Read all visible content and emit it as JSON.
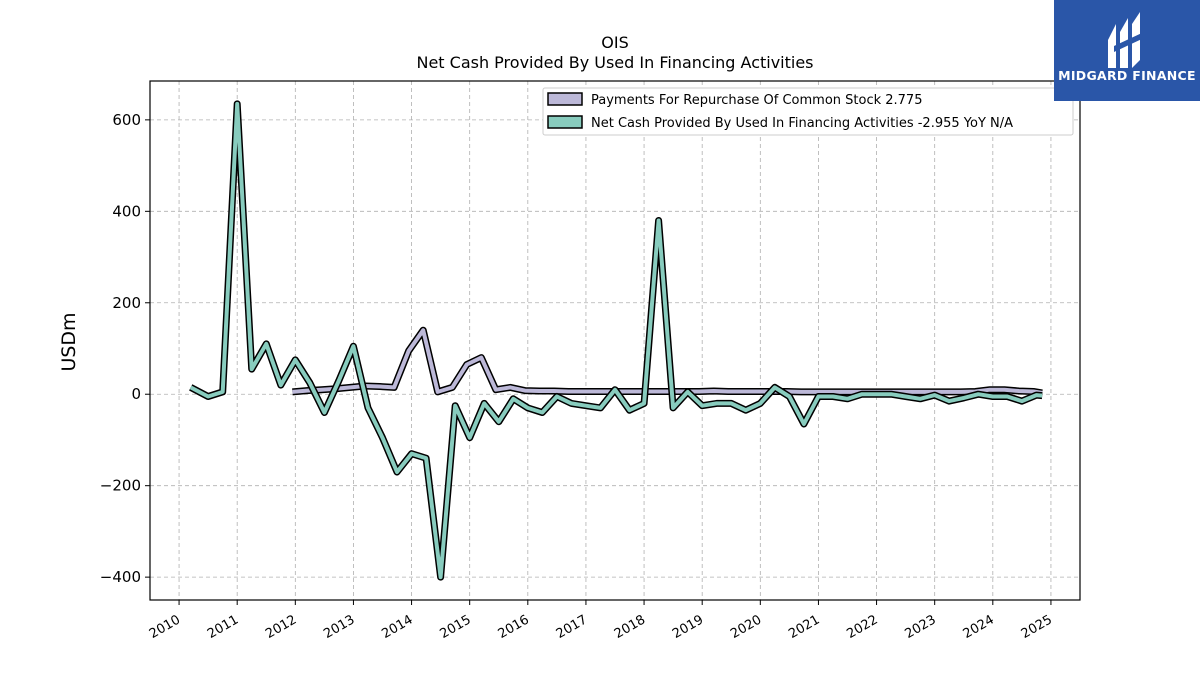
{
  "chart_data": {
    "type": "line",
    "title": "OIS",
    "subtitle": "Net Cash Provided By Used In Financing Activities",
    "ylabel": "USDm",
    "xlabel": "",
    "xlim": [
      2009.5,
      2025.5
    ],
    "ylim": [
      -450,
      685
    ],
    "yticks": [
      -400,
      -200,
      0,
      200,
      400,
      600
    ],
    "ytick_labels": [
      "−400",
      "−200",
      "0",
      "200",
      "400",
      "600"
    ],
    "xticks": [
      2010,
      2011,
      2012,
      2013,
      2014,
      2015,
      2016,
      2017,
      2018,
      2019,
      2020,
      2021,
      2022,
      2023,
      2024,
      2025
    ],
    "xtick_labels": [
      "2010",
      "2011",
      "2012",
      "2013",
      "2014",
      "2015",
      "2016",
      "2017",
      "2018",
      "2019",
      "2020",
      "2021",
      "2022",
      "2023",
      "2024",
      "2025"
    ],
    "grid": true,
    "legend_position": "top-right",
    "series": [
      {
        "name": "Payments For Repurchase Of Common Stock",
        "legend_label": "Payments For Repurchase Of Common Stock  2.775",
        "color": "#bcb8d8",
        "x": [
          2011.95,
          2012.2,
          2012.45,
          2012.7,
          2012.95,
          2013.2,
          2013.45,
          2013.7,
          2013.95,
          2014.2,
          2014.45,
          2014.7,
          2014.95,
          2015.2,
          2015.45,
          2015.7,
          2015.95,
          2016.2,
          2016.45,
          2016.7,
          2016.95,
          2017.2,
          2017.45,
          2017.7,
          2017.95,
          2018.2,
          2018.45,
          2018.7,
          2018.95,
          2019.2,
          2019.45,
          2019.7,
          2019.95,
          2020.2,
          2020.45,
          2020.7,
          2020.95,
          2021.2,
          2021.45,
          2021.7,
          2021.95,
          2022.2,
          2022.45,
          2022.7,
          2022.95,
          2023.2,
          2023.45,
          2023.7,
          2023.95,
          2024.2,
          2024.45,
          2024.7,
          2024.85
        ],
        "values": [
          5,
          8,
          10,
          12,
          15,
          18,
          17,
          15,
          95,
          140,
          5,
          15,
          65,
          80,
          10,
          15,
          8,
          7,
          7,
          6,
          6,
          6,
          6,
          6,
          6,
          6,
          6,
          6,
          6,
          7,
          6,
          6,
          6,
          6,
          6,
          5,
          5,
          5,
          5,
          5,
          5,
          5,
          5,
          5,
          5,
          5,
          5,
          6,
          10,
          10,
          7,
          6,
          3
        ]
      },
      {
        "name": "Net Cash Provided By Used In Financing Activities",
        "legend_label": "Net Cash Provided By Used In Financing Activities  -2.955 YoY N/A",
        "color": "#88ccbe",
        "x": [
          2010.2,
          2010.5,
          2010.75,
          2011.0,
          2011.25,
          2011.5,
          2011.75,
          2012.0,
          2012.25,
          2012.5,
          2012.75,
          2013.0,
          2013.25,
          2013.5,
          2013.75,
          2014.0,
          2014.25,
          2014.5,
          2014.75,
          2015.0,
          2015.25,
          2015.5,
          2015.75,
          2016.0,
          2016.25,
          2016.5,
          2016.75,
          2017.0,
          2017.25,
          2017.5,
          2017.75,
          2018.0,
          2018.25,
          2018.5,
          2018.75,
          2019.0,
          2019.25,
          2019.5,
          2019.75,
          2020.0,
          2020.25,
          2020.5,
          2020.75,
          2021.0,
          2021.25,
          2021.5,
          2021.75,
          2022.0,
          2022.25,
          2022.5,
          2022.75,
          2023.0,
          2023.25,
          2023.5,
          2023.75,
          2024.0,
          2024.25,
          2024.5,
          2024.75,
          2024.85
        ],
        "values": [
          15,
          -5,
          5,
          635,
          55,
          110,
          20,
          75,
          25,
          -40,
          30,
          105,
          -30,
          -95,
          -170,
          -130,
          -140,
          -400,
          -25,
          -95,
          -20,
          -60,
          -10,
          -30,
          -40,
          -5,
          -20,
          -25,
          -30,
          10,
          -35,
          -20,
          380,
          -30,
          5,
          -25,
          -20,
          -20,
          -35,
          -20,
          15,
          -5,
          -65,
          -5,
          -5,
          -10,
          0,
          0,
          0,
          -5,
          -10,
          -2,
          -15,
          -8,
          0,
          -5,
          -5,
          -15,
          -2,
          -3
        ]
      }
    ]
  },
  "logo": {
    "text": "MIDGARD FINANCE"
  },
  "colors": {
    "logo_bg": "#2a56a8",
    "grid": "#b0b0b0"
  }
}
